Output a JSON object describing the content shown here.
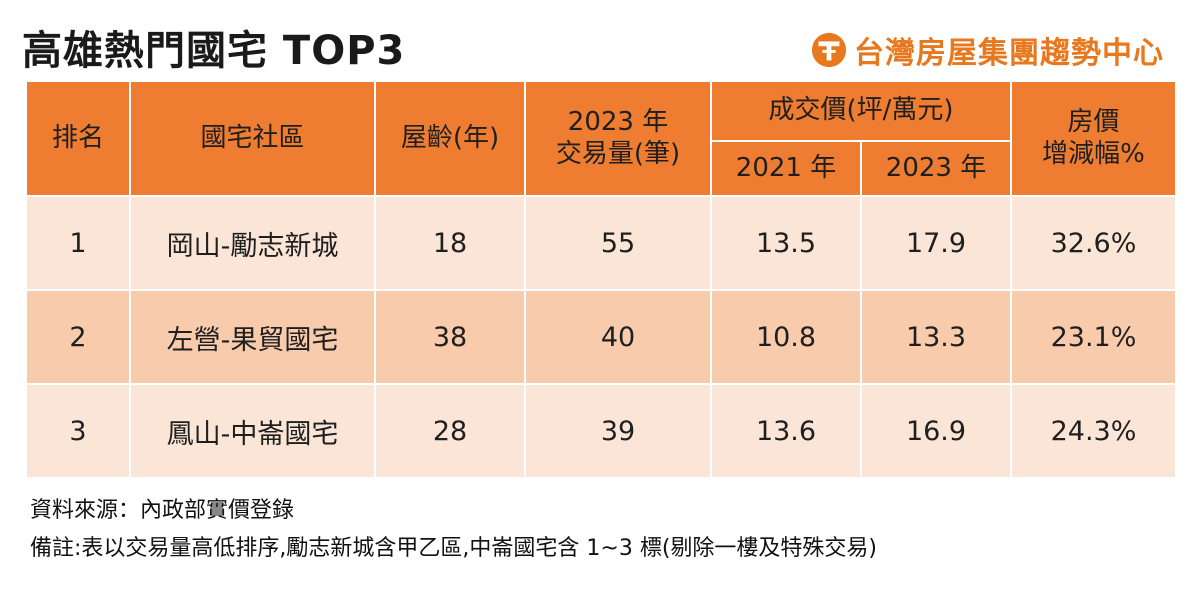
{
  "title": "高雄熱門國宅 TOP3",
  "brand": {
    "name": "台灣房屋集團趨勢中心",
    "icon": "taiwan-realty-logo-icon",
    "color": "#e8781e"
  },
  "colors": {
    "header_bg": "#ee7d31",
    "row_light": "#fbe5d7",
    "row_dark": "#f8cbad"
  },
  "chart_data": {
    "type": "table",
    "title": "高雄熱門國宅 TOP3",
    "headers": {
      "rank": "排名",
      "community": "國宅社區",
      "age": "屋齡(年)",
      "volume_line1": "2023 年",
      "volume_line2": "交易量(筆)",
      "price_group": "成交價(坪/萬元)",
      "price_2021": "2021 年",
      "price_2023": "2023 年",
      "change_line1": "房價",
      "change_line2": "增減幅%"
    },
    "rows": [
      {
        "rank": "1",
        "community": "岡山-勵志新城",
        "age": "18",
        "volume": "55",
        "price_2021": "13.5",
        "price_2023": "17.9",
        "change": "32.6%"
      },
      {
        "rank": "2",
        "community": "左營-果貿國宅",
        "age": "38",
        "volume": "40",
        "price_2021": "10.8",
        "price_2023": "13.3",
        "change": "23.1%"
      },
      {
        "rank": "3",
        "community": "鳳山-中崙國宅",
        "age": "28",
        "volume": "39",
        "price_2021": "13.6",
        "price_2023": "16.9",
        "change": "24.3%"
      }
    ]
  },
  "notes": {
    "source": "資料來源：內政部實價登錄",
    "remark": "備註:表以交易量高低排序,勵志新城含甲乙區,中崙國宅含 1~3 標(剔除一樓及特殊交易)"
  }
}
